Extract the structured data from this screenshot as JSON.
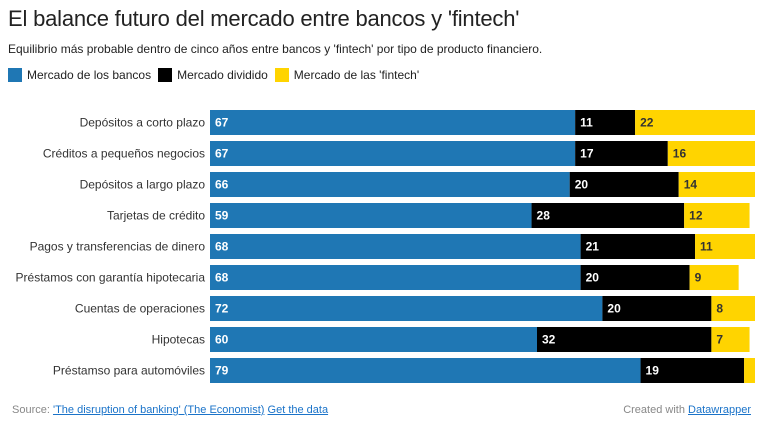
{
  "title": "El balance futuro del mercado entre bancos y 'fintech'",
  "subtitle": "Equilibrio más probable dentro de cinco años entre bancos y 'fintech' por tipo de producto financiero.",
  "legend": [
    {
      "label": "Mercado de los bancos",
      "color": "#1f77b4"
    },
    {
      "label": "Mercado dividido",
      "color": "#000000"
    },
    {
      "label": "Mercado de las 'fintech'",
      "color": "#ffd400"
    }
  ],
  "chart_data": {
    "type": "bar",
    "orientation": "horizontal",
    "stacked": true,
    "categories": [
      "Depósitos a corto plazo",
      "Créditos a pequeños negocios",
      "Depósitos a largo plazo",
      "Tarjetas de crédito",
      "Pagos y transferencias de dinero",
      "Préstamos con garantía hipotecaria",
      "Cuentas de operaciones",
      "Hipotecas",
      "Préstamso para automóviles"
    ],
    "series": [
      {
        "name": "Mercado de los bancos",
        "color": "#1f77b4",
        "label_color": "#ffffff",
        "values": [
          67,
          67,
          66,
          59,
          68,
          68,
          72,
          60,
          79
        ]
      },
      {
        "name": "Mercado dividido",
        "color": "#000000",
        "label_color": "#ffffff",
        "values": [
          11,
          17,
          20,
          28,
          21,
          20,
          20,
          32,
          19
        ]
      },
      {
        "name": "Mercado de las 'fintech'",
        "color": "#ffd400",
        "label_color": "#333333",
        "values": [
          22,
          16,
          14,
          12,
          11,
          9,
          8,
          7,
          2
        ]
      }
    ],
    "series_labels_shown": [
      [
        true,
        true,
        true,
        true,
        true,
        true,
        true,
        true,
        true
      ],
      [
        true,
        true,
        true,
        true,
        true,
        true,
        true,
        true,
        true
      ],
      [
        true,
        true,
        true,
        true,
        true,
        true,
        true,
        true,
        false
      ]
    ],
    "xlim": [
      0,
      100
    ],
    "grid": false
  },
  "footer": {
    "source_prefix": "Source:",
    "source_link": "'The disruption of banking' (The Economist)",
    "get_data": "Get the data",
    "created_prefix": "Created with",
    "created_link": "Datawrapper"
  }
}
